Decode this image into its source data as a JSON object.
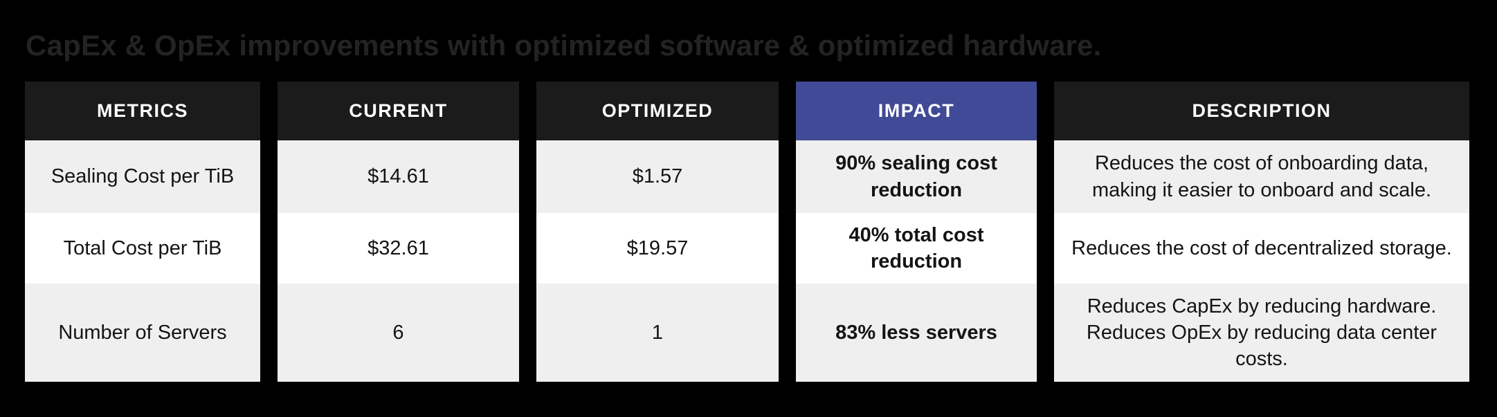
{
  "chart_data": {
    "type": "table",
    "title": "CapEx & OpEx improvements with optimized software & optimized hardware.",
    "columns": [
      "METRICS",
      "CURRENT",
      "OPTIMIZED",
      "IMPACT",
      "DESCRIPTION"
    ],
    "rows": [
      [
        "Sealing Cost per TiB",
        "$14.61",
        "$1.57",
        "90% sealing cost reduction",
        "Reduces the cost of onboarding data, making it easier to onboard and scale."
      ],
      [
        "Total Cost per TiB",
        "$32.61",
        "$19.57",
        "40% total cost reduction",
        "Reduces the cost of decentralized storage."
      ],
      [
        "Number of Servers",
        "6",
        "1",
        "83% less servers",
        "Reduces CapEx by reducing hardware. Reduces OpEx by reducing data center costs."
      ]
    ],
    "highlight_column": "IMPACT",
    "layout": "header row dark, IMPACT header highlighted blue, body rows alternate light-gray / white"
  },
  "colors": {
    "background": "#000000",
    "title_text": "#232323",
    "header_bg": "#1B1B1B",
    "header_text": "#FFFFFF",
    "impact_header_bg": "#414A96",
    "row_alt_bg": "#EFEFEF",
    "row_bg": "#FFFFFF",
    "body_text": "#141414"
  }
}
